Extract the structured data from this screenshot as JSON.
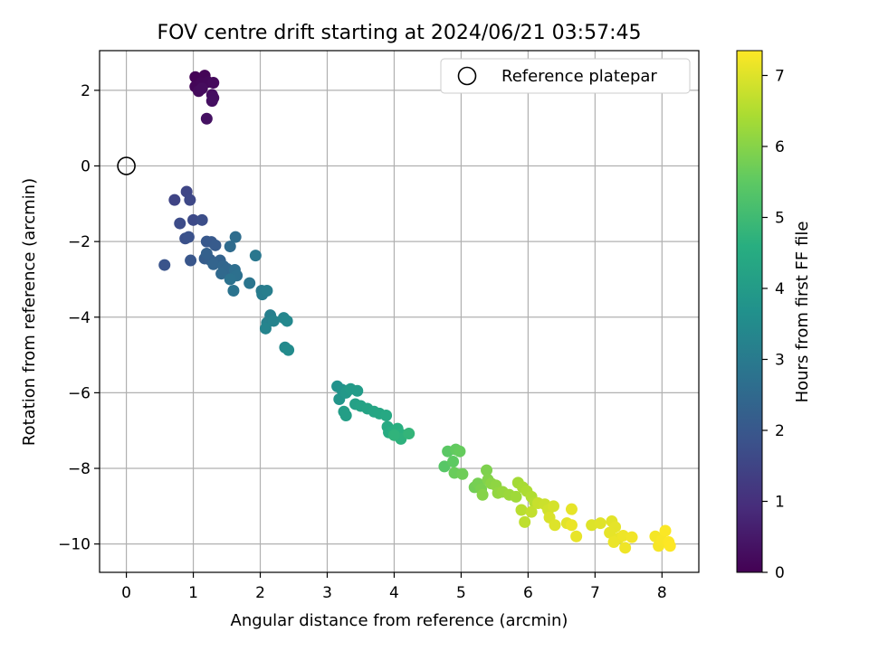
{
  "chart_data": {
    "type": "scatter",
    "title": "FOV centre drift starting at 2024/06/21 03:57:45",
    "xlabel": "Angular distance from reference (arcmin)",
    "ylabel": "Rotation from reference (arcmin)",
    "xlim": [
      -0.4,
      8.55
    ],
    "ylim": [
      -10.75,
      3.05
    ],
    "xticks": [
      "0",
      "1",
      "2",
      "3",
      "4",
      "5",
      "6",
      "7",
      "8"
    ],
    "yticks": [
      "2",
      "0",
      "−2",
      "−4",
      "−6",
      "−8",
      "−10"
    ],
    "grid": true,
    "legend": {
      "position": "top-right",
      "label": "Reference platepar"
    },
    "reference": {
      "x": 0,
      "y": 0
    },
    "colorbar": {
      "label": "Hours from first FF file",
      "colormap": "viridis",
      "range": [
        0,
        7.35
      ],
      "ticks": [
        "0",
        "1",
        "2",
        "3",
        "4",
        "5",
        "6",
        "7"
      ]
    },
    "points": [
      [
        1.03,
        2.35,
        0.05
      ],
      [
        1.17,
        2.39,
        0.08
      ],
      [
        1.03,
        2.1,
        0.1
      ],
      [
        1.12,
        2.2,
        0.12
      ],
      [
        1.22,
        2.22,
        0.15
      ],
      [
        1.3,
        2.2,
        0.18
      ],
      [
        1.08,
        1.98,
        0.2
      ],
      [
        1.13,
        2.05,
        0.22
      ],
      [
        1.28,
        1.88,
        0.25
      ],
      [
        1.3,
        1.8,
        0.28
      ],
      [
        1.28,
        1.72,
        0.3
      ],
      [
        1.2,
        1.25,
        0.33
      ],
      [
        0.72,
        -0.9,
        1.5
      ],
      [
        0.9,
        -0.68,
        1.55
      ],
      [
        0.95,
        -0.9,
        1.6
      ],
      [
        1.0,
        -1.43,
        1.65
      ],
      [
        0.8,
        -1.52,
        1.7
      ],
      [
        1.13,
        -1.43,
        1.75
      ],
      [
        0.88,
        -1.92,
        1.8
      ],
      [
        0.93,
        -1.88,
        1.85
      ],
      [
        0.57,
        -2.62,
        1.9
      ],
      [
        0.96,
        -2.5,
        1.95
      ],
      [
        1.2,
        -2.0,
        2.0
      ],
      [
        1.27,
        -2.01,
        2.05
      ],
      [
        1.33,
        -2.1,
        2.1
      ],
      [
        1.17,
        -2.45,
        2.15
      ],
      [
        1.25,
        -2.48,
        2.2
      ],
      [
        1.2,
        -2.32,
        2.25
      ],
      [
        1.4,
        -2.5,
        2.3
      ],
      [
        1.3,
        -2.6,
        2.35
      ],
      [
        1.45,
        -2.65,
        2.4
      ],
      [
        1.5,
        -2.72,
        2.45
      ],
      [
        1.42,
        -2.85,
        2.5
      ],
      [
        1.55,
        -2.13,
        2.55
      ],
      [
        1.63,
        -1.88,
        2.6
      ],
      [
        1.62,
        -2.75,
        2.65
      ],
      [
        1.65,
        -2.9,
        2.7
      ],
      [
        1.55,
        -3.0,
        2.75
      ],
      [
        1.6,
        -3.3,
        2.8
      ],
      [
        1.84,
        -3.1,
        2.85
      ],
      [
        1.93,
        -2.37,
        2.9
      ],
      [
        2.02,
        -3.3,
        3.0
      ],
      [
        2.03,
        -3.4,
        3.05
      ],
      [
        2.1,
        -3.3,
        3.1
      ],
      [
        2.15,
        -3.95,
        3.15
      ],
      [
        2.1,
        -4.15,
        3.2
      ],
      [
        2.2,
        -4.1,
        3.25
      ],
      [
        2.08,
        -4.3,
        3.3
      ],
      [
        2.35,
        -4.02,
        3.35
      ],
      [
        2.4,
        -4.1,
        3.4
      ],
      [
        2.37,
        -4.8,
        3.45
      ],
      [
        2.42,
        -4.87,
        3.5
      ],
      [
        3.15,
        -5.83,
        3.7
      ],
      [
        3.22,
        -5.92,
        3.75
      ],
      [
        3.18,
        -6.17,
        3.8
      ],
      [
        3.3,
        -5.95,
        3.85
      ],
      [
        3.28,
        -6.0,
        3.9
      ],
      [
        3.35,
        -5.9,
        3.95
      ],
      [
        3.45,
        -5.95,
        4.0
      ],
      [
        3.25,
        -6.5,
        4.05
      ],
      [
        3.28,
        -6.6,
        4.1
      ],
      [
        3.42,
        -6.3,
        4.15
      ],
      [
        3.5,
        -6.35,
        4.2
      ],
      [
        3.6,
        -6.42,
        4.25
      ],
      [
        3.7,
        -6.5,
        4.3
      ],
      [
        3.78,
        -6.55,
        4.35
      ],
      [
        3.88,
        -6.6,
        4.4
      ],
      [
        3.9,
        -6.9,
        4.45
      ],
      [
        3.92,
        -7.05,
        4.5
      ],
      [
        4.0,
        -7.0,
        4.55
      ],
      [
        4.05,
        -6.95,
        4.6
      ],
      [
        4.1,
        -7.1,
        4.65
      ],
      [
        4.1,
        -7.22,
        4.7
      ],
      [
        4.0,
        -7.12,
        4.75
      ],
      [
        4.22,
        -7.08,
        4.8
      ],
      [
        4.75,
        -7.95,
        5.4
      ],
      [
        4.8,
        -7.55,
        5.45
      ],
      [
        4.88,
        -7.82,
        5.5
      ],
      [
        4.92,
        -7.5,
        5.55
      ],
      [
        4.98,
        -7.55,
        5.6
      ],
      [
        4.9,
        -8.12,
        5.65
      ],
      [
        5.02,
        -8.15,
        5.7
      ],
      [
        5.2,
        -8.5,
        5.75
      ],
      [
        5.25,
        -8.4,
        5.8
      ],
      [
        5.3,
        -8.55,
        5.85
      ],
      [
        5.38,
        -8.05,
        5.9
      ],
      [
        5.4,
        -8.3,
        5.95
      ],
      [
        5.32,
        -8.7,
        6.0
      ],
      [
        5.45,
        -8.4,
        6.05
      ],
      [
        5.52,
        -8.45,
        6.1
      ],
      [
        5.55,
        -8.65,
        6.15
      ],
      [
        5.62,
        -8.62,
        6.2
      ],
      [
        5.72,
        -8.7,
        6.25
      ],
      [
        5.82,
        -8.75,
        6.3
      ],
      [
        5.85,
        -8.38,
        6.35
      ],
      [
        5.92,
        -8.5,
        6.4
      ],
      [
        5.98,
        -8.6,
        6.45
      ],
      [
        6.05,
        -8.75,
        6.5
      ],
      [
        6.1,
        -8.9,
        6.55
      ],
      [
        5.9,
        -9.1,
        6.6
      ],
      [
        5.95,
        -9.42,
        6.65
      ],
      [
        6.05,
        -9.15,
        6.7
      ],
      [
        6.15,
        -8.92,
        6.75
      ],
      [
        6.25,
        -8.95,
        6.8
      ],
      [
        6.3,
        -9.1,
        6.85
      ],
      [
        6.38,
        -9.0,
        6.9
      ],
      [
        6.32,
        -9.3,
        6.95
      ],
      [
        6.4,
        -9.5,
        7.0
      ],
      [
        6.58,
        -9.45,
        7.05
      ],
      [
        6.65,
        -9.08,
        7.1
      ],
      [
        6.72,
        -9.8,
        7.12
      ],
      [
        6.65,
        -9.5,
        7.15
      ],
      [
        6.95,
        -9.5,
        7.0
      ],
      [
        7.08,
        -9.45,
        7.03
      ],
      [
        7.25,
        -9.4,
        7.05
      ],
      [
        7.3,
        -9.55,
        7.08
      ],
      [
        7.22,
        -9.7,
        7.1
      ],
      [
        7.35,
        -9.85,
        7.12
      ],
      [
        7.28,
        -9.95,
        7.15
      ],
      [
        7.42,
        -9.78,
        7.18
      ],
      [
        7.45,
        -10.1,
        7.2
      ],
      [
        7.55,
        -9.82,
        7.22
      ],
      [
        7.9,
        -9.8,
        7.25
      ],
      [
        7.95,
        -10.05,
        7.27
      ],
      [
        8.0,
        -9.9,
        7.3
      ],
      [
        8.05,
        -9.65,
        7.32
      ],
      [
        8.1,
        -9.95,
        7.34
      ],
      [
        8.12,
        -10.05,
        7.35
      ]
    ]
  }
}
